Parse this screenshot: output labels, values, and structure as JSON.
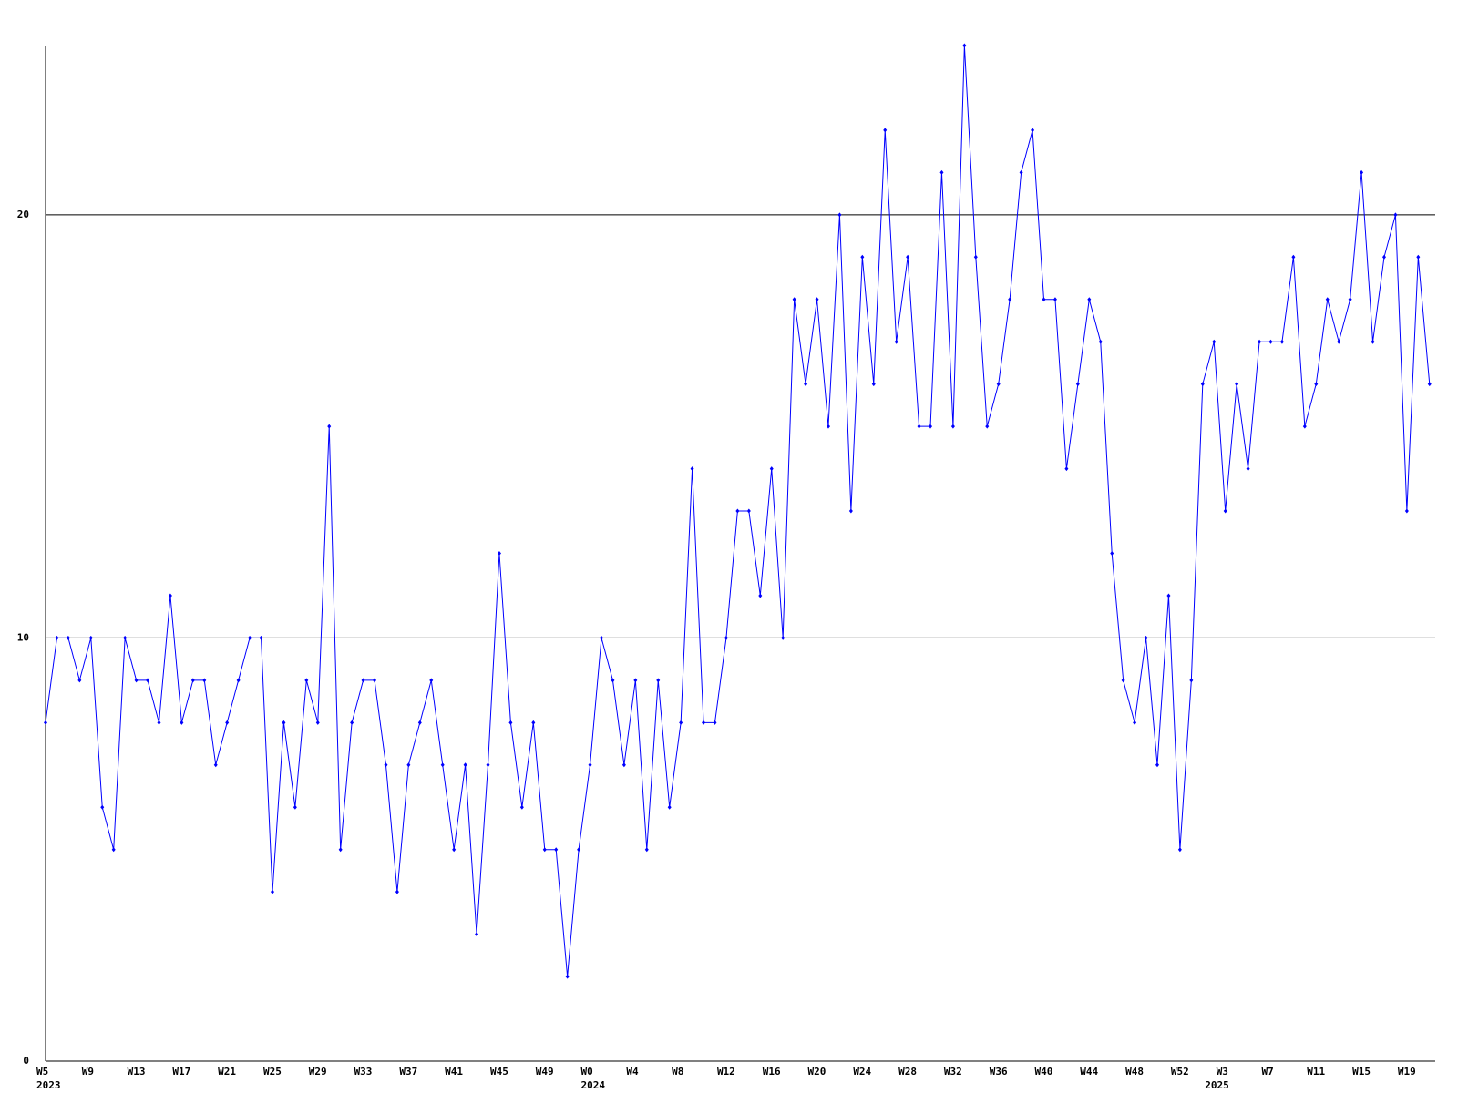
{
  "chart_data": {
    "type": "line",
    "categories": [
      "W5",
      null,
      null,
      null,
      "W9",
      null,
      null,
      null,
      "W13",
      null,
      null,
      null,
      "W17",
      null,
      null,
      null,
      "W21",
      null,
      null,
      null,
      "W25",
      null,
      null,
      null,
      "W29",
      null,
      null,
      null,
      "W33",
      null,
      null,
      null,
      "W37",
      null,
      null,
      null,
      "W41",
      null,
      null,
      null,
      "W45",
      null,
      null,
      null,
      "W49",
      null,
      null,
      null,
      "W0",
      null,
      null,
      null,
      "W4",
      null,
      null,
      null,
      "W8",
      null,
      null,
      null,
      "W12",
      null,
      null,
      null,
      "W16",
      null,
      null,
      null,
      "W20",
      null,
      null,
      null,
      "W24",
      null,
      null,
      null,
      "W28",
      null,
      null,
      null,
      "W32",
      null,
      null,
      null,
      "W36",
      null,
      null,
      null,
      "W40",
      null,
      null,
      null,
      "W44",
      null,
      null,
      null,
      "W48",
      null,
      null,
      null,
      "W52",
      null,
      null,
      null,
      "W3",
      null,
      null,
      null,
      "W7",
      null,
      null,
      null,
      "W11",
      null,
      null,
      null,
      "W15",
      null,
      null,
      null,
      "W19",
      null,
      null
    ],
    "category_years": [
      "2023",
      null,
      null,
      null,
      null,
      null,
      null,
      null,
      null,
      null,
      null,
      null,
      null,
      null,
      null,
      null,
      null,
      null,
      null,
      null,
      null,
      null,
      null,
      null,
      null,
      null,
      null,
      null,
      null,
      null,
      null,
      null,
      null,
      null,
      null,
      null,
      null,
      null,
      null,
      null,
      null,
      null,
      null,
      null,
      null,
      null,
      null,
      null,
      "2024",
      null,
      null,
      null,
      null,
      null,
      null,
      null,
      null,
      null,
      null,
      null,
      null,
      null,
      null,
      null,
      null,
      null,
      null,
      null,
      null,
      null,
      null,
      null,
      null,
      null,
      null,
      null,
      null,
      null,
      null,
      null,
      null,
      null,
      null,
      null,
      null,
      null,
      null,
      null,
      null,
      null,
      null,
      null,
      null,
      null,
      null,
      null,
      null,
      null,
      null,
      null,
      null,
      null,
      null,
      "2025",
      null,
      null,
      null,
      null,
      null,
      null,
      null,
      null,
      null,
      null,
      null,
      null,
      null,
      null,
      null,
      null,
      null,
      null,
      null,
      null,
      null
    ],
    "series": [
      {
        "color": "#0000ff",
        "values": [
          8,
          10,
          10,
          9,
          10,
          6,
          5,
          10,
          9,
          9,
          8,
          11,
          8,
          9,
          9,
          7,
          8,
          9,
          10,
          10,
          4,
          8,
          6,
          9,
          8,
          15,
          5,
          8,
          9,
          9,
          7,
          4,
          7,
          8,
          9,
          7,
          5,
          7,
          3,
          7,
          12,
          8,
          6,
          8,
          5,
          5,
          2,
          5,
          7,
          10,
          9,
          7,
          9,
          5,
          9,
          6,
          8,
          14,
          8,
          8,
          10,
          13,
          13,
          11,
          14,
          10,
          18,
          16,
          18,
          15,
          20,
          13,
          19,
          16,
          22,
          17,
          19,
          15,
          15,
          21,
          15,
          24,
          19,
          15,
          16,
          18,
          21,
          22,
          18,
          18,
          14,
          16,
          18,
          17,
          12,
          9,
          8,
          10,
          7,
          11,
          5,
          9,
          16,
          17,
          13,
          16,
          14,
          17,
          17,
          17,
          19,
          15,
          16,
          18,
          17,
          18,
          21,
          17,
          19,
          20,
          13,
          19,
          16
        ]
      }
    ],
    "ylim": [
      0,
      24
    ],
    "yticks": [
      0,
      10,
      20
    ],
    "grid": true
  }
}
